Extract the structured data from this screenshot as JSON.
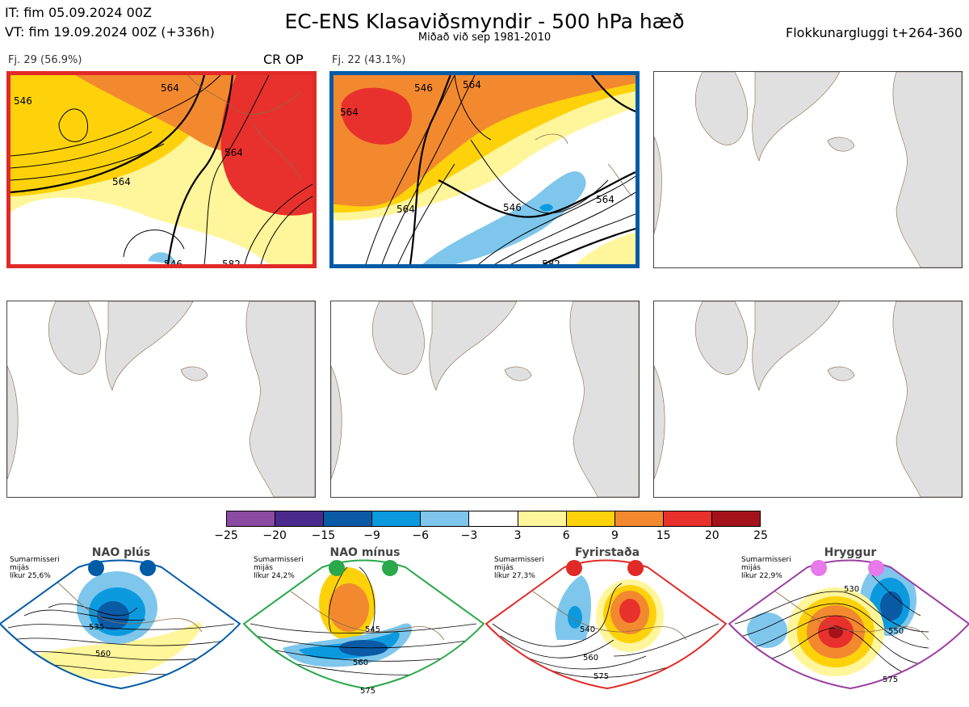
{
  "header": {
    "it": "IT: fim 05.09.2024 00Z",
    "vt": "VT: fim 19.09.2024 00Z  (+336h)",
    "title": "EC-ENS Klasaviðsmyndir - 500 hPa hæð",
    "subtitle": "Miðað við sep 1981-2010",
    "window": "Flokkunargluggi t+264-360"
  },
  "clusters": [
    {
      "label": "Fj. 29 (56.9%)",
      "border_color": "#e02a27",
      "extra": "CR OP",
      "contour_labels": [
        "546",
        "564",
        "564",
        "564",
        "546",
        "582"
      ]
    },
    {
      "label": "Fj. 22 (43.1%)",
      "border_color": "#005ba6",
      "extra": "",
      "contour_labels": [
        "564",
        "546",
        "564",
        "564",
        "546",
        "564",
        "582"
      ]
    }
  ],
  "colorbar": {
    "ticks": [
      "−25",
      "−20",
      "−15",
      "−9",
      "−6",
      "−3",
      "3",
      "6",
      "9",
      "15",
      "20",
      "25"
    ],
    "colors": [
      "#8b4ba3",
      "#4a2a8c",
      "#0b5aa6",
      "#0c9adf",
      "#7ec6ec",
      "#ffffff",
      "#fff59b",
      "#fdd20a",
      "#f3892f",
      "#e8312c",
      "#a3121a"
    ]
  },
  "regimes": [
    {
      "name": "NAO plús",
      "line1": "Sumarmisseri",
      "line2": "mijás",
      "line3": "líkur 25,6%",
      "color": "#005ba6",
      "labels": [
        "535",
        "560"
      ]
    },
    {
      "name": "NAO mínus",
      "line1": "Sumarmisseri",
      "line2": "mijás",
      "line3": "líkur 24,2%",
      "color": "#2aa84a",
      "labels": [
        "545",
        "560",
        "575"
      ]
    },
    {
      "name": "Fyrirstaða",
      "line1": "Sumarmisseri",
      "line2": "mijás",
      "line3": "líkur 27,3%",
      "color": "#e02a27",
      "labels": [
        "540",
        "560",
        "575"
      ]
    },
    {
      "name": "Hryggur",
      "line1": "Sumarmisseri",
      "line2": "mijás",
      "line3": "líkur 22,9%",
      "color": "#9b3fa0",
      "labels": [
        "530",
        "550",
        "575"
      ]
    }
  ],
  "chart_data": {
    "type": "heatmap",
    "title": "EC-ENS Klasaviðsmyndir - 500 hPa hæð",
    "clusters": [
      {
        "name": "Fj. 29",
        "members": 29,
        "percent": 56.9
      },
      {
        "name": "Fj. 22",
        "members": 22,
        "percent": 43.1
      }
    ],
    "colorbar_ticks": [
      -25,
      -20,
      -15,
      -9,
      -6,
      -3,
      3,
      6,
      9,
      15,
      20,
      25
    ],
    "regimes": [
      {
        "name": "NAO plús",
        "probability_percent": 25.6
      },
      {
        "name": "NAO mínus",
        "probability_percent": 24.2
      },
      {
        "name": "Fyrirstaða",
        "probability_percent": 27.3
      },
      {
        "name": "Hryggur",
        "probability_percent": 22.9
      }
    ]
  }
}
